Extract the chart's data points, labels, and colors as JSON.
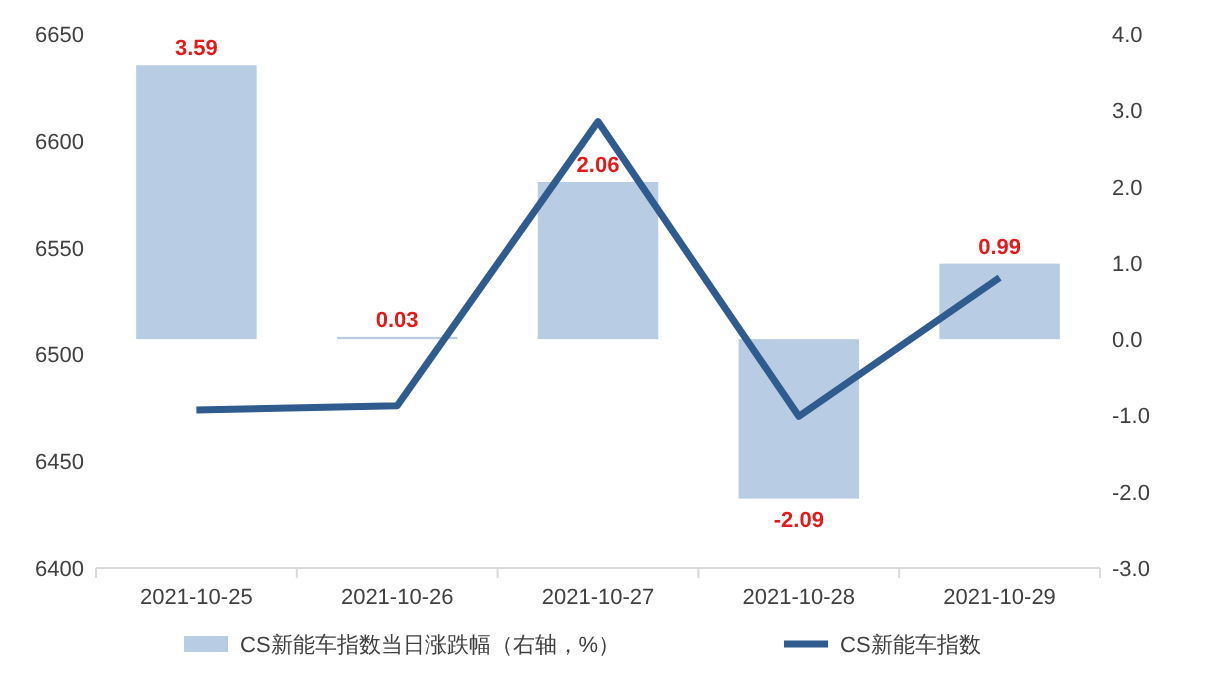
{
  "chart_data": {
    "type": "bar",
    "categories": [
      "2021-10-25",
      "2021-10-26",
      "2021-10-27",
      "2021-10-28",
      "2021-10-29"
    ],
    "series": [
      {
        "name": "CS新能车指数当日涨跌幅（右轴，%）",
        "axis": "y2",
        "color": "#b8cce4",
        "values": [
          3.59,
          0.03,
          2.06,
          -2.09,
          0.99
        ],
        "value_labels": [
          "3.59",
          "0.03",
          "2.06",
          "-2.09",
          "0.99"
        ]
      },
      {
        "name": "CS新能车指数",
        "type": "line",
        "color": "#2f5b8e",
        "values": [
          6474,
          6476,
          6609,
          6471,
          6536
        ]
      }
    ],
    "ylim": [
      6400,
      6650
    ],
    "yticks": [
      6400,
      6450,
      6500,
      6550,
      6600,
      6650
    ],
    "y2lim": [
      -3,
      4
    ],
    "y2ticks": [
      {
        "value": -3,
        "label": "-3.0"
      },
      {
        "value": -2,
        "label": "-2.0"
      },
      {
        "value": -1,
        "label": "-1.0"
      },
      {
        "value": 0,
        "label": "0.0"
      },
      {
        "value": 1,
        "label": "1.0"
      },
      {
        "value": 2,
        "label": "2.0"
      },
      {
        "value": 3,
        "label": "3.0"
      },
      {
        "value": 4,
        "label": "4.0"
      }
    ],
    "legend": "bottom"
  }
}
